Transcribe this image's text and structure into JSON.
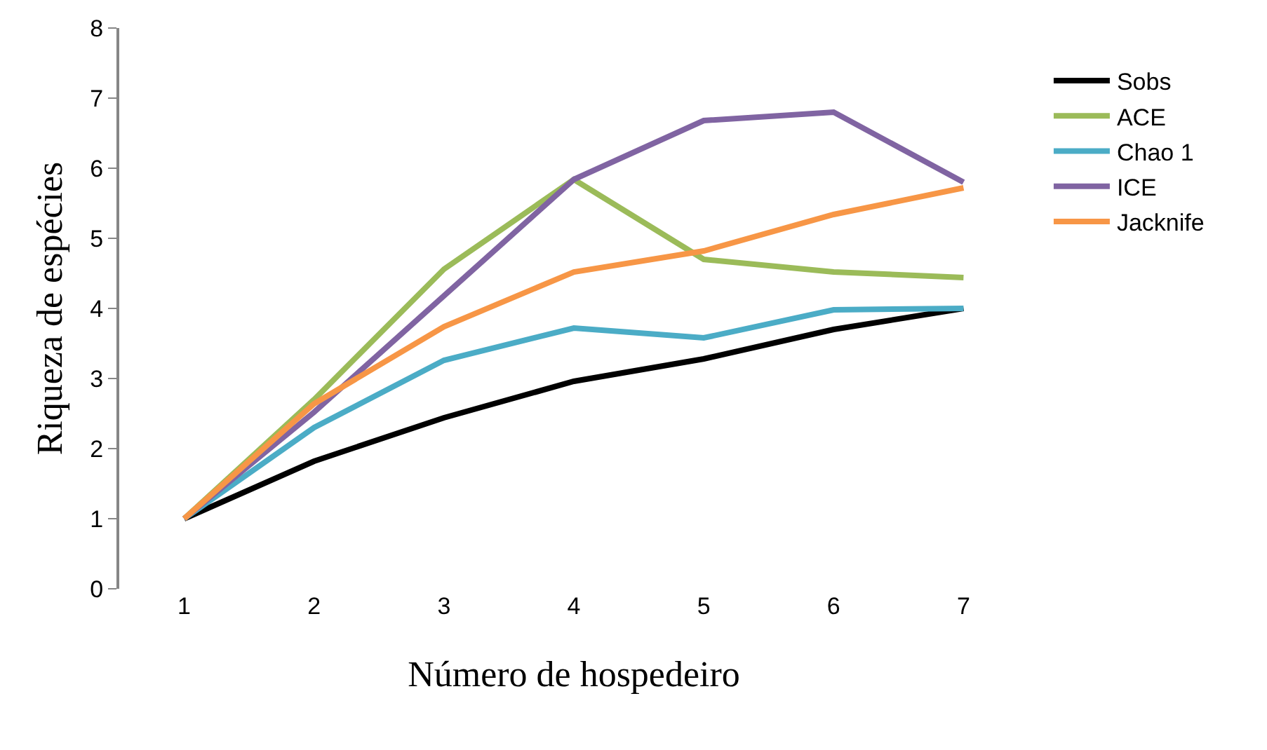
{
  "chart_data": {
    "type": "line",
    "xlabel": "Número de hospedeiro",
    "ylabel": "Riqueza de espécies",
    "categories": [
      "1",
      "2",
      "3",
      "4",
      "5",
      "6",
      "7"
    ],
    "ylim": [
      0,
      8
    ],
    "yticks": [
      0,
      1,
      2,
      3,
      4,
      5,
      6,
      7,
      8
    ],
    "legend": "right",
    "marker": "none",
    "line_style": "solid",
    "series": [
      {
        "name": "Sobs",
        "color": "#000000",
        "values": [
          1,
          1.82,
          2.44,
          2.96,
          3.28,
          3.7,
          4.0
        ]
      },
      {
        "name": "ACE",
        "color": "#9bbb59",
        "values": [
          1,
          2.7,
          4.56,
          5.84,
          4.7,
          4.52,
          4.44
        ]
      },
      {
        "name": "Chao 1",
        "color": "#4bacc6",
        "values": [
          1,
          2.3,
          3.26,
          3.72,
          3.58,
          3.98,
          4.0
        ]
      },
      {
        "name": "ICE",
        "color": "#8064a2",
        "values": [
          1,
          2.52,
          4.18,
          5.84,
          6.68,
          6.8,
          5.8
        ]
      },
      {
        "name": "Jacknife",
        "color": "#f79646",
        "values": [
          1,
          2.64,
          3.74,
          4.52,
          4.82,
          5.34,
          5.72
        ]
      }
    ]
  }
}
